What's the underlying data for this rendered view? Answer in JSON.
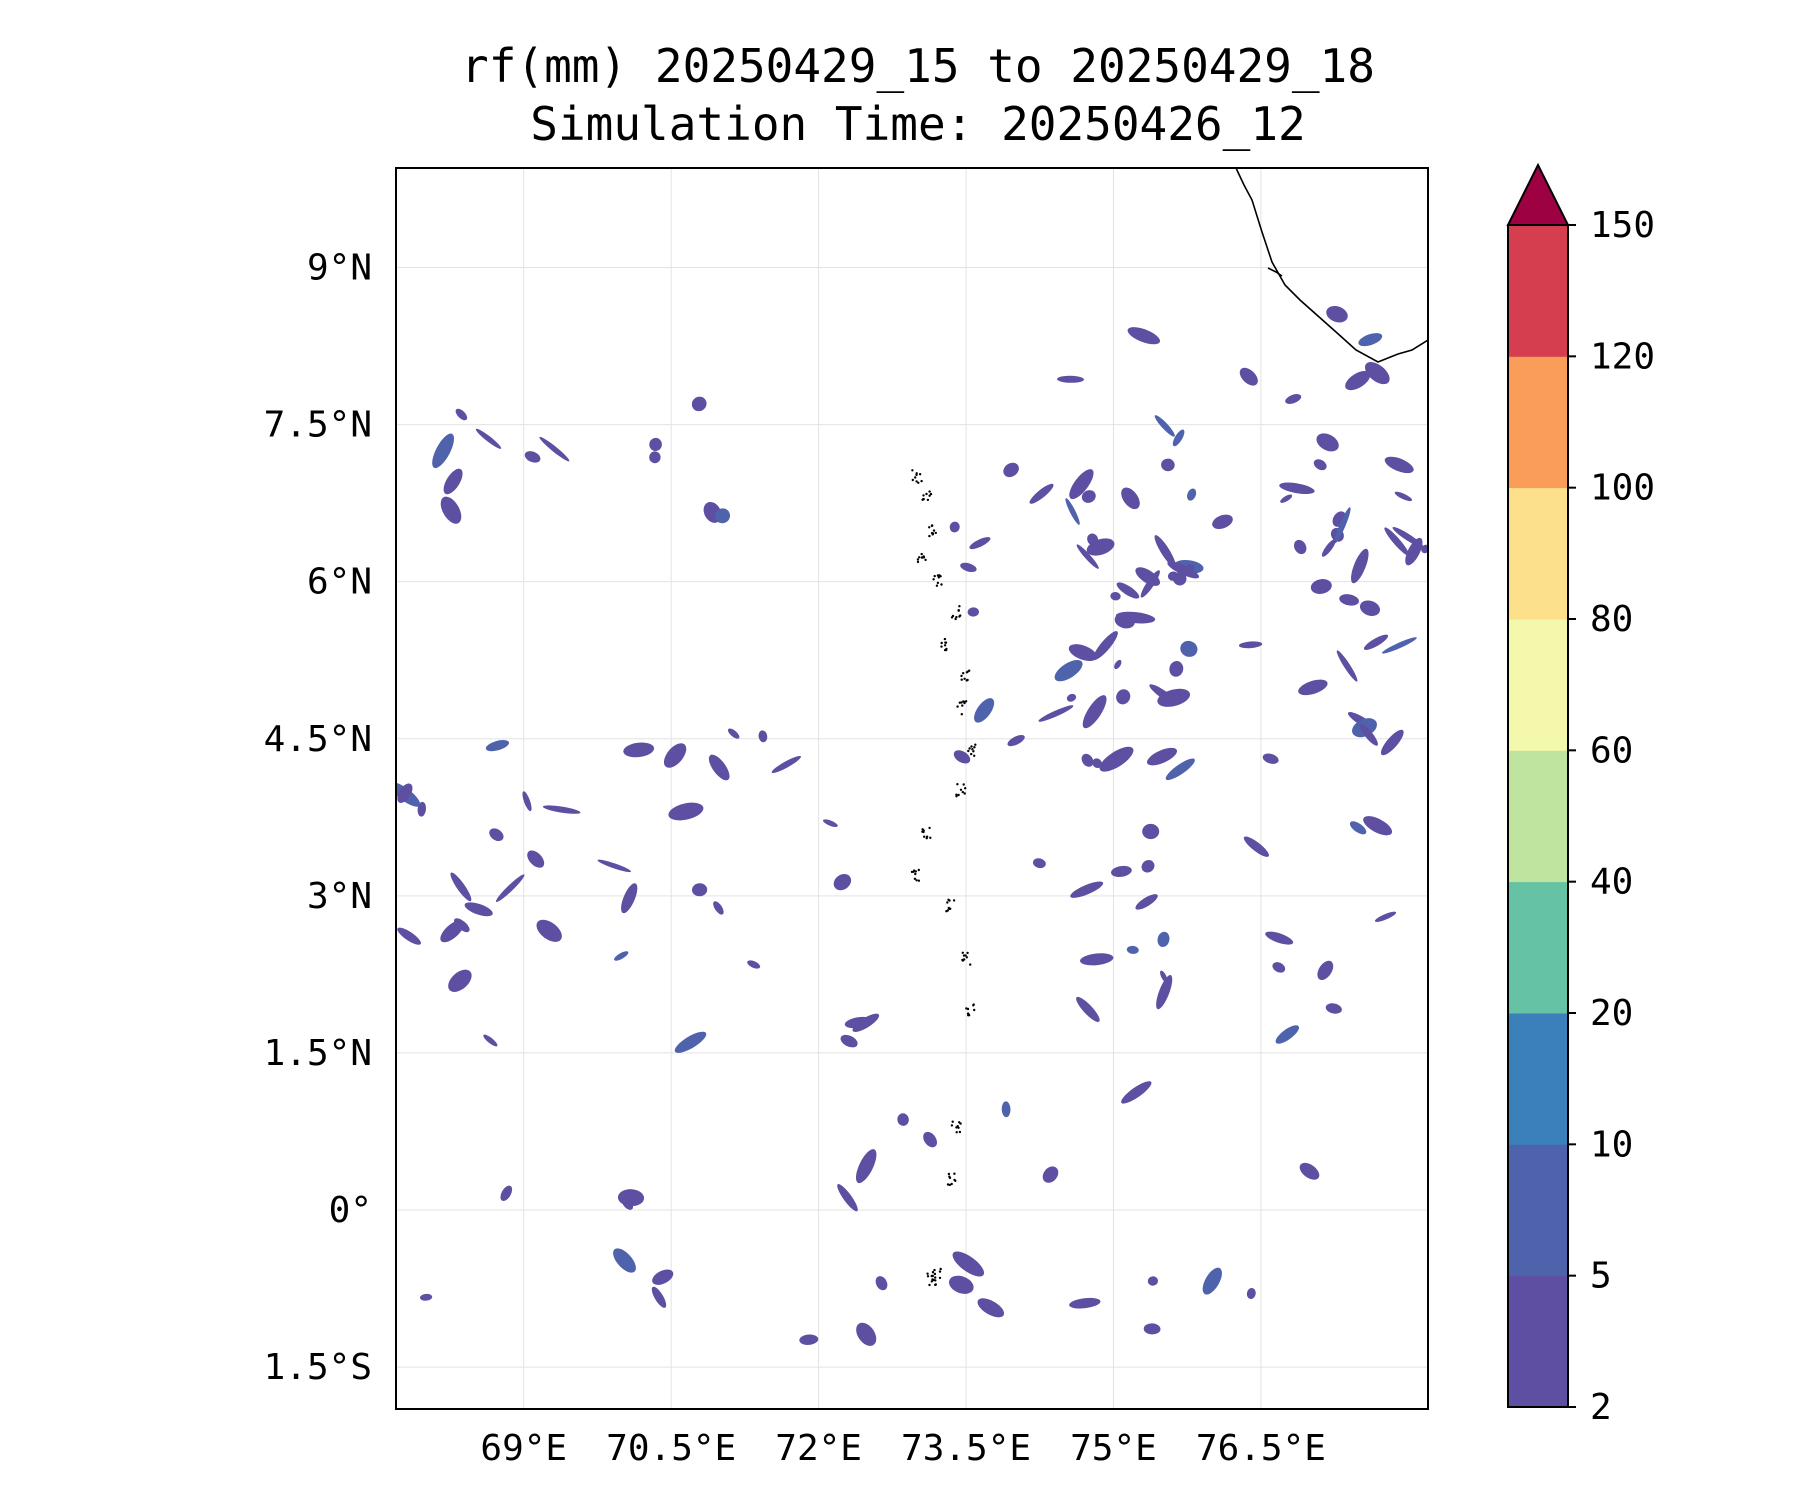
{
  "title": {
    "line1": "rf(mm) 20250429_15 to 20250429_18",
    "line2": "Simulation Time: 20250426_12"
  },
  "map": {
    "lon_range": [
      67.7,
      78.2
    ],
    "lat_range": [
      -1.9,
      9.95
    ],
    "lon_ticks": [
      {
        "value": 69.0,
        "label": "69°E"
      },
      {
        "value": 70.5,
        "label": "70.5°E"
      },
      {
        "value": 72.0,
        "label": "72°E"
      },
      {
        "value": 73.5,
        "label": "73.5°E"
      },
      {
        "value": 75.0,
        "label": "75°E"
      },
      {
        "value": 76.5,
        "label": "76.5°E"
      }
    ],
    "lat_ticks": [
      {
        "value": 9.0,
        "label": "9°N"
      },
      {
        "value": 7.5,
        "label": "7.5°N"
      },
      {
        "value": 6.0,
        "label": "6°N"
      },
      {
        "value": 4.5,
        "label": "4.5°N"
      },
      {
        "value": 3.0,
        "label": "3°N"
      },
      {
        "value": 1.5,
        "label": "1.5°N"
      },
      {
        "value": 0.0,
        "label": "0°"
      },
      {
        "value": -1.5,
        "label": "1.5°S"
      }
    ],
    "gridlines": true,
    "coastline": "India (Kerala) coast, upper-right corner",
    "islands": "Maldives / Lakshadweep atolls, dotted outlines"
  },
  "colorbar": {
    "levels": [
      {
        "value": 2,
        "label": "2",
        "color": "#5e4fa2"
      },
      {
        "value": 5,
        "label": "5",
        "color": "#4f63ad"
      },
      {
        "value": 10,
        "label": "10",
        "color": "#3b80b9"
      },
      {
        "value": 20,
        "label": "20",
        "color": "#66c2a5"
      },
      {
        "value": 40,
        "label": "40",
        "color": "#bfe4a0"
      },
      {
        "value": 60,
        "label": "60",
        "color": "#f3f8ad"
      },
      {
        "value": 80,
        "label": "80",
        "color": "#fde08b"
      },
      {
        "value": 100,
        "label": "100",
        "color": "#f99d59"
      },
      {
        "value": 120,
        "label": "120",
        "color": "#d53e4f"
      },
      {
        "value": 150,
        "label": "150",
        "color": "#9e0142"
      }
    ],
    "extend": "max",
    "orientation": "vertical",
    "placement": "right"
  },
  "rain_field": {
    "color_2_5": "#5e4fa2",
    "color_5_10": "#4f63ad",
    "max_value_range": "5–10 mm",
    "regions": [
      {
        "name": "west-band-north",
        "lon": [
          67.7,
          71.8
        ],
        "lat": [
          6.4,
          7.8
        ],
        "density": 0.55
      },
      {
        "name": "west-arc",
        "lon": [
          67.7,
          72.5
        ],
        "lat": [
          1.4,
          4.6
        ],
        "density": 0.6
      },
      {
        "name": "central-east-cluster",
        "lon": [
          73.3,
          78.2
        ],
        "lat": [
          4.2,
          7.2
        ],
        "density": 0.75
      },
      {
        "name": "east-streaks",
        "lon": [
          74.2,
          78.2
        ],
        "lat": [
          1.2,
          8.6
        ],
        "density": 0.55
      },
      {
        "name": "south-west",
        "lon": [
          67.7,
          70.6
        ],
        "lat": [
          -0.9,
          0.2
        ],
        "density": 0.55
      },
      {
        "name": "south-central",
        "lon": [
          71.5,
          77.0
        ],
        "lat": [
          -1.3,
          1.2
        ],
        "density": 0.35
      }
    ]
  }
}
